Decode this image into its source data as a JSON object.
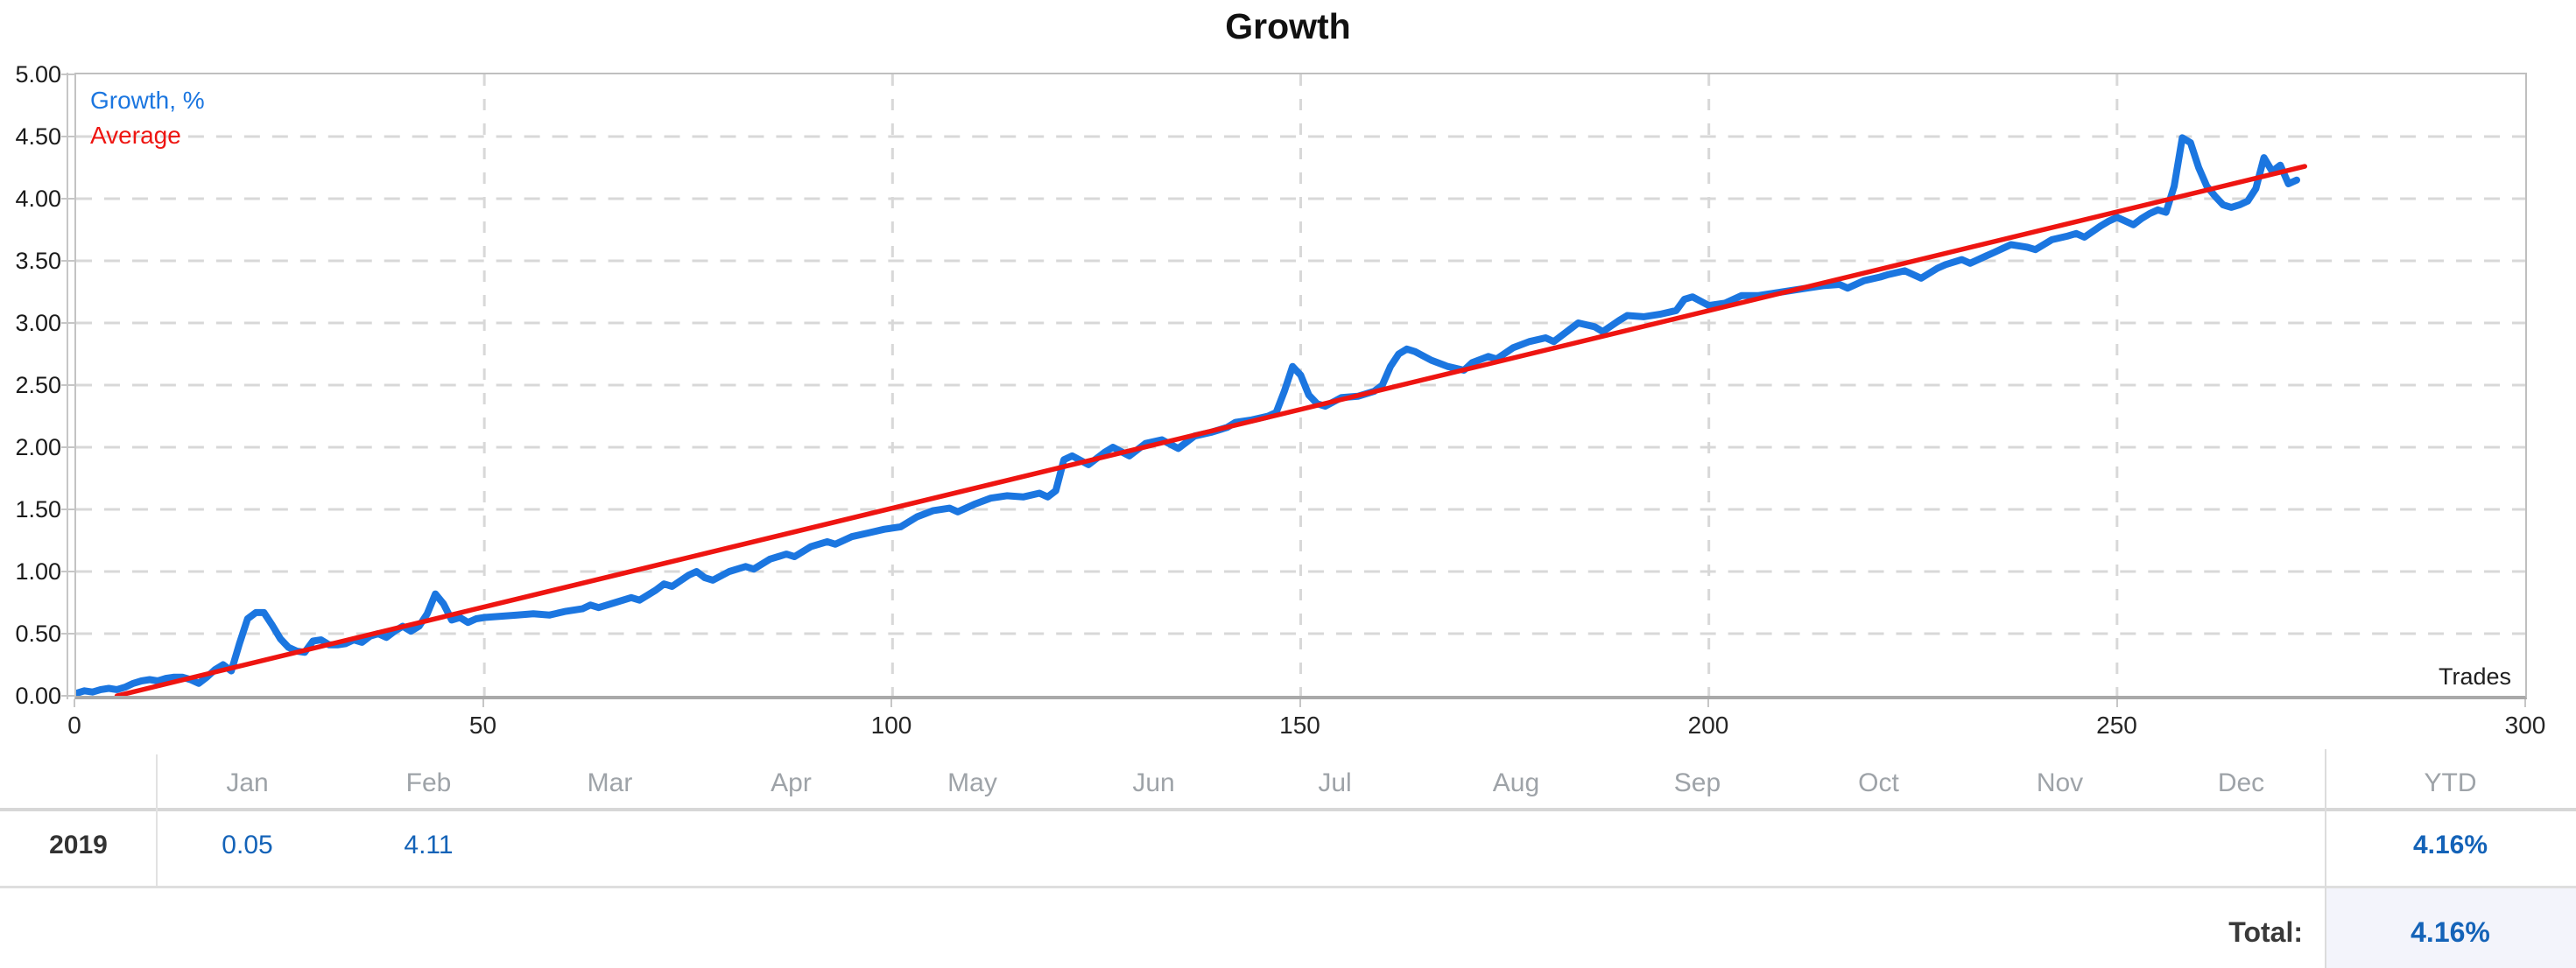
{
  "chart_data": {
    "type": "line",
    "title": "Growth",
    "x_axis_title": "Trades",
    "ylabel": "Growth, %",
    "xlim": [
      0,
      300
    ],
    "ylim": [
      0,
      5
    ],
    "x_ticks": [
      0,
      50,
      100,
      150,
      200,
      250,
      300
    ],
    "x_tick_labels": [
      "0",
      "50",
      "100",
      "150",
      "200",
      "250",
      "300"
    ],
    "y_ticks": [
      0,
      0.5,
      1,
      1.5,
      2,
      2.5,
      3,
      3.5,
      4,
      4.5,
      5
    ],
    "y_tick_labels": [
      "0.00",
      "0.50",
      "1.00",
      "1.50",
      "2.00",
      "2.50",
      "3.00",
      "3.50",
      "4.00",
      "4.50",
      "5.00"
    ],
    "grid": "dashed",
    "legend_position": "top-left",
    "legend": [
      {
        "label": "Growth, %",
        "color": "#1b76e0"
      },
      {
        "label": "Average",
        "color": "#ee1511"
      }
    ],
    "series": [
      {
        "name": "Growth, %",
        "color": "#1b76e0",
        "stroke_width": 8,
        "points": [
          [
            0,
            0.02
          ],
          [
            1,
            0.04
          ],
          [
            2,
            0.03
          ],
          [
            3,
            0.05
          ],
          [
            4,
            0.06
          ],
          [
            5,
            0.05
          ],
          [
            6,
            0.07
          ],
          [
            7,
            0.1
          ],
          [
            8,
            0.12
          ],
          [
            9,
            0.13
          ],
          [
            10,
            0.12
          ],
          [
            11,
            0.14
          ],
          [
            12,
            0.15
          ],
          [
            13,
            0.15
          ],
          [
            14,
            0.13
          ],
          [
            15,
            0.1
          ],
          [
            16,
            0.15
          ],
          [
            17,
            0.21
          ],
          [
            18,
            0.25
          ],
          [
            19,
            0.2
          ],
          [
            20,
            0.42
          ],
          [
            21,
            0.62
          ],
          [
            22,
            0.67
          ],
          [
            23,
            0.67
          ],
          [
            24,
            0.57
          ],
          [
            25,
            0.46
          ],
          [
            26,
            0.39
          ],
          [
            27,
            0.36
          ],
          [
            28,
            0.35
          ],
          [
            29,
            0.44
          ],
          [
            30,
            0.45
          ],
          [
            31,
            0.41
          ],
          [
            32,
            0.41
          ],
          [
            33,
            0.42
          ],
          [
            34,
            0.45
          ],
          [
            35,
            0.43
          ],
          [
            36,
            0.48
          ],
          [
            37,
            0.5
          ],
          [
            38,
            0.47
          ],
          [
            39,
            0.52
          ],
          [
            40,
            0.56
          ],
          [
            41,
            0.52
          ],
          [
            42,
            0.56
          ],
          [
            43,
            0.66
          ],
          [
            44,
            0.82
          ],
          [
            45,
            0.74
          ],
          [
            46,
            0.61
          ],
          [
            47,
            0.63
          ],
          [
            48,
            0.59
          ],
          [
            49,
            0.62
          ],
          [
            50,
            0.63
          ],
          [
            52,
            0.64
          ],
          [
            54,
            0.65
          ],
          [
            56,
            0.66
          ],
          [
            58,
            0.65
          ],
          [
            60,
            0.68
          ],
          [
            62,
            0.7
          ],
          [
            63,
            0.73
          ],
          [
            64,
            0.71
          ],
          [
            66,
            0.75
          ],
          [
            68,
            0.79
          ],
          [
            69,
            0.77
          ],
          [
            71,
            0.85
          ],
          [
            72,
            0.9
          ],
          [
            73,
            0.88
          ],
          [
            75,
            0.97
          ],
          [
            76,
            1
          ],
          [
            77,
            0.95
          ],
          [
            78,
            0.93
          ],
          [
            80,
            1
          ],
          [
            82,
            1.04
          ],
          [
            83,
            1.02
          ],
          [
            85,
            1.1
          ],
          [
            87,
            1.14
          ],
          [
            88,
            1.12
          ],
          [
            90,
            1.2
          ],
          [
            92,
            1.24
          ],
          [
            93,
            1.22
          ],
          [
            95,
            1.28
          ],
          [
            97,
            1.31
          ],
          [
            99,
            1.34
          ],
          [
            101,
            1.36
          ],
          [
            103,
            1.44
          ],
          [
            105,
            1.49
          ],
          [
            107,
            1.51
          ],
          [
            108,
            1.48
          ],
          [
            110,
            1.54
          ],
          [
            112,
            1.59
          ],
          [
            114,
            1.61
          ],
          [
            116,
            1.6
          ],
          [
            118,
            1.63
          ],
          [
            119,
            1.6
          ],
          [
            120,
            1.65
          ],
          [
            121,
            1.9
          ],
          [
            122,
            1.93
          ],
          [
            124,
            1.86
          ],
          [
            126,
            1.96
          ],
          [
            127,
            2
          ],
          [
            129,
            1.93
          ],
          [
            131,
            2.03
          ],
          [
            133,
            2.06
          ],
          [
            135,
            1.99
          ],
          [
            137,
            2.09
          ],
          [
            139,
            2.12
          ],
          [
            141,
            2.16
          ],
          [
            142,
            2.2
          ],
          [
            144,
            2.22
          ],
          [
            146,
            2.25
          ],
          [
            147,
            2.28
          ],
          [
            148,
            2.45
          ],
          [
            149,
            2.65
          ],
          [
            150,
            2.58
          ],
          [
            151,
            2.42
          ],
          [
            152,
            2.35
          ],
          [
            153,
            2.33
          ],
          [
            155,
            2.4
          ],
          [
            157,
            2.41
          ],
          [
            159,
            2.45
          ],
          [
            160,
            2.5
          ],
          [
            161,
            2.65
          ],
          [
            162,
            2.75
          ],
          [
            163,
            2.79
          ],
          [
            164,
            2.77
          ],
          [
            166,
            2.7
          ],
          [
            168,
            2.65
          ],
          [
            170,
            2.62
          ],
          [
            171,
            2.68
          ],
          [
            173,
            2.73
          ],
          [
            174,
            2.71
          ],
          [
            176,
            2.8
          ],
          [
            178,
            2.85
          ],
          [
            180,
            2.88
          ],
          [
            181,
            2.85
          ],
          [
            183,
            2.95
          ],
          [
            184,
            3
          ],
          [
            186,
            2.97
          ],
          [
            187,
            2.93
          ],
          [
            189,
            3.02
          ],
          [
            190,
            3.06
          ],
          [
            192,
            3.05
          ],
          [
            194,
            3.07
          ],
          [
            196,
            3.1
          ],
          [
            197,
            3.19
          ],
          [
            198,
            3.21
          ],
          [
            200,
            3.14
          ],
          [
            202,
            3.16
          ],
          [
            204,
            3.22
          ],
          [
            206,
            3.22
          ],
          [
            208,
            3.24
          ],
          [
            210,
            3.26
          ],
          [
            212,
            3.28
          ],
          [
            214,
            3.3
          ],
          [
            216,
            3.31
          ],
          [
            217,
            3.28
          ],
          [
            219,
            3.34
          ],
          [
            221,
            3.37
          ],
          [
            222,
            3.39
          ],
          [
            224,
            3.42
          ],
          [
            226,
            3.36
          ],
          [
            228,
            3.44
          ],
          [
            229,
            3.47
          ],
          [
            231,
            3.51
          ],
          [
            232,
            3.48
          ],
          [
            234,
            3.54
          ],
          [
            235,
            3.57
          ],
          [
            237,
            3.63
          ],
          [
            239,
            3.61
          ],
          [
            240,
            3.59
          ],
          [
            242,
            3.67
          ],
          [
            244,
            3.7
          ],
          [
            245,
            3.72
          ],
          [
            246,
            3.69
          ],
          [
            248,
            3.78
          ],
          [
            249,
            3.82
          ],
          [
            250,
            3.85
          ],
          [
            252,
            3.79
          ],
          [
            253,
            3.84
          ],
          [
            254,
            3.88
          ],
          [
            255,
            3.91
          ],
          [
            256,
            3.89
          ],
          [
            257,
            4.1
          ],
          [
            258,
            4.49
          ],
          [
            259,
            4.45
          ],
          [
            260,
            4.25
          ],
          [
            261,
            4.1
          ],
          [
            262,
            4.02
          ],
          [
            263,
            3.95
          ],
          [
            264,
            3.93
          ],
          [
            265,
            3.95
          ],
          [
            266,
            3.98
          ],
          [
            267,
            4.08
          ],
          [
            268,
            4.33
          ],
          [
            269,
            4.22
          ],
          [
            270,
            4.27
          ],
          [
            271,
            4.12
          ],
          [
            272,
            4.15
          ]
        ]
      },
      {
        "name": "Average",
        "color": "#ee1511",
        "stroke_width": 5.5,
        "points": [
          [
            5,
            0
          ],
          [
            273,
            4.26
          ]
        ]
      }
    ]
  },
  "table": {
    "columns": [
      "Jan",
      "Feb",
      "Mar",
      "Apr",
      "May",
      "Jun",
      "Jul",
      "Aug",
      "Sep",
      "Oct",
      "Nov",
      "Dec"
    ],
    "ytd_header": "YTD",
    "rows": [
      {
        "year": "2019",
        "monthly": [
          "0.05",
          "4.11",
          "",
          "",
          "",
          "",
          "",
          "",
          "",
          "",
          "",
          ""
        ],
        "ytd": "4.16%"
      }
    ],
    "total_label": "Total:",
    "total_value": "4.16%"
  },
  "colors": {
    "growth_line": "#1b76e0",
    "average_line": "#ee1511",
    "gridline": "#d8d8d8",
    "plot_border": "#bfbfbf",
    "axis_tick": "#c6c6c6",
    "month_header_text": "#9ea3a8",
    "value_text": "#1463b8",
    "total_cell_bg": "#f3f4fb"
  }
}
